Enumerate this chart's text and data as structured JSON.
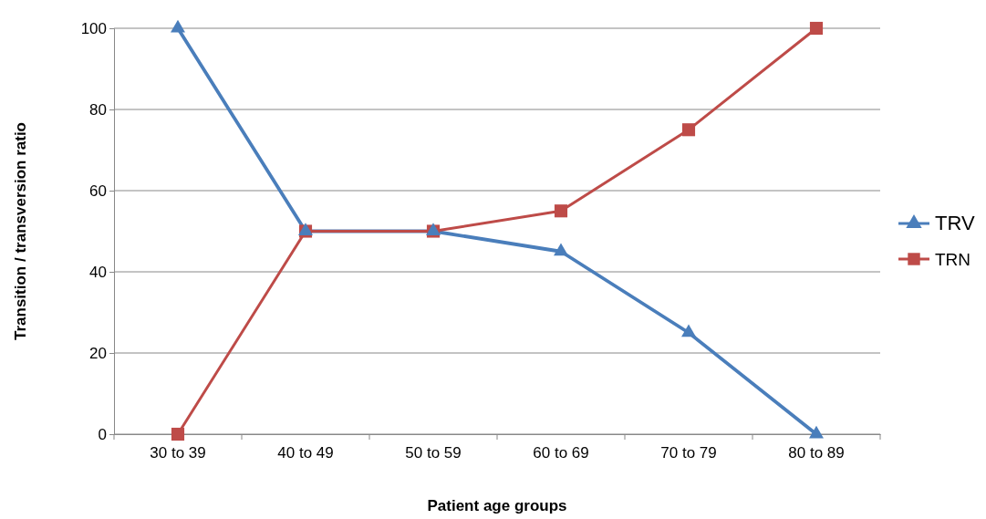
{
  "chart_data": {
    "type": "line",
    "xlabel": "Patient age groups",
    "ylabel": "Transition / transversion ratio",
    "categories": [
      "30 to 39",
      "40 to 49",
      "50 to 59",
      "60 to 69",
      "70 to 79",
      "80 to 89"
    ],
    "series": [
      {
        "name": "TRV",
        "color": "#4a7ebb",
        "marker": "triangle",
        "values": [
          100,
          50,
          50,
          45,
          25,
          0
        ]
      },
      {
        "name": "TRN",
        "color": "#be4b48",
        "marker": "square",
        "values": [
          0,
          50,
          50,
          55,
          75,
          100
        ]
      }
    ],
    "ylim": [
      0,
      100
    ],
    "yticks": [
      0,
      20,
      40,
      60,
      80,
      100
    ],
    "grid": "y",
    "legend": "right",
    "line_style": "solid"
  }
}
